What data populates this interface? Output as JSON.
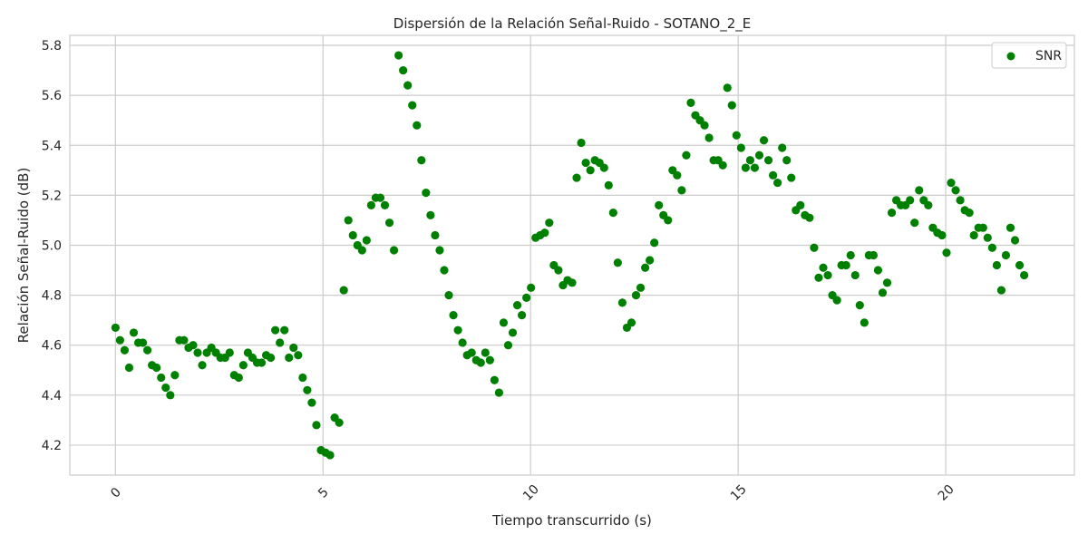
{
  "chart_data": {
    "type": "scatter",
    "title": "Dispersión de la Relación Señal-Ruido - SOTANO_2_E",
    "xlabel": "Tiempo transcurrido (s)",
    "ylabel": "Relación Señal-Ruido (dB)",
    "xlim": [
      -1.1,
      23.1
    ],
    "ylim": [
      4.08,
      5.84
    ],
    "xticks": [
      0,
      5,
      10,
      15,
      20
    ],
    "xtick_labels": [
      "0",
      "5",
      "10",
      "15",
      "20"
    ],
    "yticks": [
      4.2,
      4.4,
      4.6,
      4.8,
      5.0,
      5.2,
      5.4,
      5.6,
      5.8
    ],
    "ytick_labels": [
      "4.2",
      "4.4",
      "4.6",
      "4.8",
      "5.0",
      "5.2",
      "5.4",
      "5.6",
      "5.8"
    ],
    "grid": true,
    "legend": "top-right",
    "color": "#008000",
    "series": [
      {
        "name": "SNR",
        "x": [
          0.0,
          0.11,
          0.22,
          0.33,
          0.44,
          0.55,
          0.66,
          0.77,
          0.88,
          0.99,
          1.1,
          1.21,
          1.32,
          1.43,
          1.54,
          1.65,
          1.76,
          1.87,
          1.98,
          2.09,
          2.2,
          2.31,
          2.42,
          2.53,
          2.64,
          2.75,
          2.86,
          2.97,
          3.08,
          3.19,
          3.3,
          3.41,
          3.52,
          3.63,
          3.74,
          3.85,
          3.96,
          4.07,
          4.18,
          4.29,
          4.4,
          4.51,
          4.62,
          4.73,
          4.84,
          4.95,
          5.06,
          5.17,
          5.28,
          5.39,
          5.5,
          5.61,
          5.72,
          5.83,
          5.94,
          6.05,
          6.16,
          6.27,
          6.38,
          6.49,
          6.6,
          6.71,
          6.82,
          6.93,
          7.04,
          7.15,
          7.26,
          7.37,
          7.48,
          7.59,
          7.7,
          7.81,
          7.92,
          8.03,
          8.14,
          8.25,
          8.36,
          8.47,
          8.58,
          8.69,
          8.8,
          8.91,
          9.02,
          9.13,
          9.24,
          9.35,
          9.46,
          9.57,
          9.68,
          9.79,
          9.9,
          10.01,
          10.12,
          10.23,
          10.34,
          10.45,
          10.56,
          10.67,
          10.78,
          10.89,
          11.0,
          11.11,
          11.22,
          11.33,
          11.44,
          11.55,
          11.66,
          11.77,
          11.88,
          11.99,
          12.1,
          12.21,
          12.32,
          12.43,
          12.54,
          12.65,
          12.76,
          12.87,
          12.98,
          13.09,
          13.2,
          13.31,
          13.42,
          13.53,
          13.64,
          13.75,
          13.86,
          13.97,
          14.08,
          14.19,
          14.3,
          14.41,
          14.52,
          14.63,
          14.74,
          14.85,
          14.96,
          15.07,
          15.18,
          15.29,
          15.4,
          15.51,
          15.62,
          15.73,
          15.84,
          15.95,
          16.06,
          16.17,
          16.28,
          16.39,
          16.5,
          16.61,
          16.72,
          16.83,
          16.94,
          17.05,
          17.16,
          17.27,
          17.38,
          17.49,
          17.6,
          17.71,
          17.82,
          17.93,
          18.04,
          18.15,
          18.26,
          18.37,
          18.48,
          18.59,
          18.7,
          18.81,
          18.92,
          19.03,
          19.14,
          19.25,
          19.36,
          19.47,
          19.58,
          19.69,
          19.8,
          19.91,
          20.02,
          20.13,
          20.24,
          20.35,
          20.46,
          20.57,
          20.68,
          20.79,
          20.9,
          21.01,
          21.12,
          21.23,
          21.34,
          21.45,
          21.56,
          21.67,
          21.78,
          21.89
        ],
        "y": [
          4.67,
          4.62,
          4.58,
          4.51,
          4.65,
          4.61,
          4.61,
          4.58,
          4.52,
          4.51,
          4.47,
          4.43,
          4.4,
          4.48,
          4.62,
          4.62,
          4.59,
          4.6,
          4.57,
          4.52,
          4.57,
          4.59,
          4.57,
          4.55,
          4.55,
          4.57,
          4.48,
          4.47,
          4.52,
          4.57,
          4.55,
          4.53,
          4.53,
          4.56,
          4.55,
          4.66,
          4.61,
          4.66,
          4.55,
          4.59,
          4.56,
          4.47,
          4.42,
          4.37,
          4.28,
          4.18,
          4.17,
          4.16,
          4.31,
          4.29,
          4.82,
          5.1,
          5.04,
          5.0,
          4.98,
          5.02,
          5.16,
          5.19,
          5.19,
          5.16,
          5.09,
          4.98,
          5.76,
          5.7,
          5.64,
          5.56,
          5.48,
          5.34,
          5.21,
          5.12,
          5.04,
          4.98,
          4.9,
          4.8,
          4.72,
          4.66,
          4.61,
          4.56,
          4.57,
          4.54,
          4.53,
          4.57,
          4.54,
          4.46,
          4.41,
          4.69,
          4.6,
          4.65,
          4.76,
          4.72,
          4.79,
          4.83,
          5.03,
          5.04,
          5.05,
          5.09,
          4.92,
          4.9,
          4.84,
          4.86,
          4.85,
          5.27,
          5.41,
          5.33,
          5.3,
          5.34,
          5.33,
          5.31,
          5.24,
          5.13,
          4.93,
          4.77,
          4.67,
          4.69,
          4.8,
          4.83,
          4.91,
          4.94,
          5.01,
          5.16,
          5.12,
          5.1,
          5.3,
          5.28,
          5.22,
          5.36,
          5.57,
          5.52,
          5.5,
          5.48,
          5.43,
          5.34,
          5.34,
          5.32,
          5.63,
          5.56,
          5.44,
          5.39,
          5.31,
          5.34,
          5.31,
          5.36,
          5.42,
          5.34,
          5.28,
          5.25,
          5.39,
          5.34,
          5.27,
          5.14,
          5.16,
          5.12,
          5.11,
          4.99,
          4.87,
          4.91,
          4.88,
          4.8,
          4.78,
          4.92,
          4.92,
          4.96,
          4.88,
          4.76,
          4.69,
          4.96,
          4.96,
          4.9,
          4.81,
          4.85,
          5.13,
          5.18,
          5.16,
          5.16,
          5.18,
          5.09,
          5.22,
          5.18,
          5.16,
          5.07,
          5.05,
          5.04,
          4.97,
          5.25,
          5.22,
          5.18,
          5.14,
          5.13,
          5.04,
          5.07,
          5.07,
          5.03,
          4.99,
          4.92,
          4.82,
          4.96,
          5.07,
          5.02,
          4.92,
          4.88
        ]
      }
    ]
  }
}
